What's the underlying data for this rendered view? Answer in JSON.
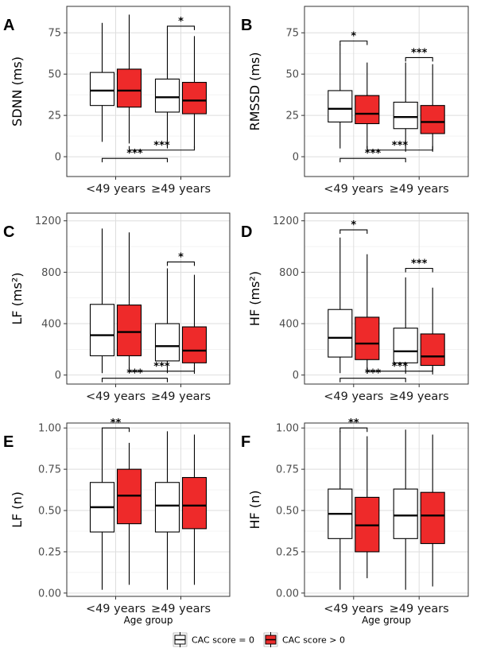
{
  "legend": {
    "items": [
      {
        "label": "CAC score = 0",
        "color": "#ffffff"
      },
      {
        "label": "CAC score > 0",
        "color": "#ee2a2a"
      }
    ]
  },
  "chart_data": [
    {
      "type": "box",
      "panel": "A",
      "ylabel": "SDNN (ms)",
      "xlabel": "",
      "ylim": [
        -12,
        91
      ],
      "yticks": [
        0,
        25,
        50,
        75
      ],
      "categories": [
        "<49 years",
        "≥49 years"
      ],
      "series": [
        {
          "name": "CAC score = 0",
          "color": "#ffffff",
          "boxes": [
            {
              "whislo": 9,
              "q1": 31,
              "med": 40,
              "q3": 51,
              "whishi": 81
            },
            {
              "whislo": 5,
              "q1": 27,
              "med": 36,
              "q3": 47,
              "whishi": 77
            }
          ]
        },
        {
          "name": "CAC score > 0",
          "color": "#ee2a2a",
          "boxes": [
            {
              "whislo": 8,
              "q1": 30,
              "med": 40,
              "q3": 53,
              "whishi": 86
            },
            {
              "whislo": 5,
              "q1": 26,
              "med": 34,
              "q3": 45,
              "whishi": 73
            }
          ]
        }
      ],
      "annotations": [
        {
          "text": "*",
          "from": [
            1,
            0
          ],
          "to": [
            1,
            1
          ],
          "y": 79,
          "dir": "down"
        },
        {
          "text": "***",
          "from": [
            0,
            1
          ],
          "to": [
            1,
            1
          ],
          "y": 4,
          "dir": "up"
        },
        {
          "text": "***",
          "from": [
            0,
            0
          ],
          "to": [
            1,
            0
          ],
          "y": -1,
          "dir": "down"
        }
      ]
    },
    {
      "type": "box",
      "panel": "B",
      "ylabel": "RMSSD (ms)",
      "xlabel": "",
      "ylim": [
        -12,
        91
      ],
      "yticks": [
        0,
        25,
        50,
        75
      ],
      "categories": [
        "<49 years",
        "≥49 years"
      ],
      "series": [
        {
          "name": "CAC score = 0",
          "color": "#ffffff",
          "boxes": [
            {
              "whislo": 5,
              "q1": 21,
              "med": 29,
              "q3": 40,
              "whishi": 68
            },
            {
              "whislo": 3,
              "q1": 17,
              "med": 24,
              "q3": 33,
              "whishi": 57
            }
          ]
        },
        {
          "name": "CAC score > 0",
          "color": "#ee2a2a",
          "boxes": [
            {
              "whislo": 5,
              "q1": 20,
              "med": 26,
              "q3": 37,
              "whishi": 57
            },
            {
              "whislo": 3,
              "q1": 14,
              "med": 21,
              "q3": 31,
              "whishi": 56
            }
          ]
        }
      ],
      "annotations": [
        {
          "text": "*",
          "from": [
            0,
            0
          ],
          "to": [
            0,
            1
          ],
          "y": 70,
          "dir": "down"
        },
        {
          "text": "***",
          "from": [
            1,
            0
          ],
          "to": [
            1,
            1
          ],
          "y": 60,
          "dir": "down"
        },
        {
          "text": "***",
          "from": [
            0,
            1
          ],
          "to": [
            1,
            1
          ],
          "y": 4,
          "dir": "up"
        },
        {
          "text": "***",
          "from": [
            0,
            0
          ],
          "to": [
            1,
            0
          ],
          "y": -1,
          "dir": "down"
        }
      ]
    },
    {
      "type": "box",
      "panel": "C",
      "ylabel": "LF (ms²)",
      "xlabel": "",
      "ylim": [
        -70,
        1260
      ],
      "yticks": [
        0,
        400,
        800,
        1200
      ],
      "categories": [
        "<49 years",
        "≥49 years"
      ],
      "series": [
        {
          "name": "CAC score = 0",
          "color": "#ffffff",
          "boxes": [
            {
              "whislo": 15,
              "q1": 150,
              "med": 310,
              "q3": 550,
              "whishi": 1140
            },
            {
              "whislo": 15,
              "q1": 110,
              "med": 225,
              "q3": 400,
              "whishi": 830
            }
          ]
        },
        {
          "name": "CAC score > 0",
          "color": "#ee2a2a",
          "boxes": [
            {
              "whislo": 15,
              "q1": 150,
              "med": 335,
              "q3": 545,
              "whishi": 1110
            },
            {
              "whislo": 10,
              "q1": 95,
              "med": 190,
              "q3": 375,
              "whishi": 780
            }
          ]
        }
      ],
      "annotations": [
        {
          "text": "*",
          "from": [
            1,
            0
          ],
          "to": [
            1,
            1
          ],
          "y": 880,
          "dir": "down"
        },
        {
          "text": "***",
          "from": [
            0,
            1
          ],
          "to": [
            1,
            1
          ],
          "y": 30,
          "dir": "up"
        },
        {
          "text": "***",
          "from": [
            0,
            0
          ],
          "to": [
            1,
            0
          ],
          "y": -25,
          "dir": "down"
        }
      ]
    },
    {
      "type": "box",
      "panel": "D",
      "ylabel": "HF (ms²)",
      "xlabel": "",
      "ylim": [
        -70,
        1260
      ],
      "yticks": [
        0,
        400,
        800,
        1200
      ],
      "categories": [
        "<49 years",
        "≥49 years"
      ],
      "series": [
        {
          "name": "CAC score = 0",
          "color": "#ffffff",
          "boxes": [
            {
              "whislo": 15,
              "q1": 140,
              "med": 290,
              "q3": 510,
              "whishi": 1070
            },
            {
              "whislo": 10,
              "q1": 95,
              "med": 185,
              "q3": 365,
              "whishi": 760
            }
          ]
        },
        {
          "name": "CAC score > 0",
          "color": "#ee2a2a",
          "boxes": [
            {
              "whislo": 10,
              "q1": 120,
              "med": 245,
              "q3": 450,
              "whishi": 940
            },
            {
              "whislo": 5,
              "q1": 75,
              "med": 145,
              "q3": 320,
              "whishi": 680
            }
          ]
        }
      ],
      "annotations": [
        {
          "text": "*",
          "from": [
            0,
            0
          ],
          "to": [
            0,
            1
          ],
          "y": 1130,
          "dir": "down"
        },
        {
          "text": "***",
          "from": [
            1,
            0
          ],
          "to": [
            1,
            1
          ],
          "y": 830,
          "dir": "down"
        },
        {
          "text": "***",
          "from": [
            0,
            1
          ],
          "to": [
            1,
            1
          ],
          "y": 30,
          "dir": "up"
        },
        {
          "text": "***",
          "from": [
            0,
            0
          ],
          "to": [
            1,
            0
          ],
          "y": -25,
          "dir": "down"
        }
      ]
    },
    {
      "type": "box",
      "panel": "E",
      "ylabel": "LF (n)",
      "xlabel": "Age group",
      "ylim": [
        -0.02,
        1.03
      ],
      "yticks": [
        0.0,
        0.25,
        0.5,
        0.75,
        1.0
      ],
      "categories": [
        "<49 years",
        "≥49 years"
      ],
      "series": [
        {
          "name": "CAC score = 0",
          "color": "#ffffff",
          "boxes": [
            {
              "whislo": 0.02,
              "q1": 0.37,
              "med": 0.52,
              "q3": 0.67,
              "whishi": 0.98
            },
            {
              "whislo": 0.02,
              "q1": 0.37,
              "med": 0.53,
              "q3": 0.67,
              "whishi": 0.98
            }
          ]
        },
        {
          "name": "CAC score > 0",
          "color": "#ee2a2a",
          "boxes": [
            {
              "whislo": 0.05,
              "q1": 0.42,
              "med": 0.59,
              "q3": 0.75,
              "whishi": 0.91
            },
            {
              "whislo": 0.05,
              "q1": 0.39,
              "med": 0.53,
              "q3": 0.7,
              "whishi": 0.96
            }
          ]
        }
      ],
      "annotations": [
        {
          "text": "**",
          "from": [
            0,
            0
          ],
          "to": [
            0,
            1
          ],
          "y": 1.0,
          "dir": "down"
        }
      ]
    },
    {
      "type": "box",
      "panel": "F",
      "ylabel": "HF (n)",
      "xlabel": "Age group",
      "ylim": [
        -0.02,
        1.03
      ],
      "yticks": [
        0.0,
        0.25,
        0.5,
        0.75,
        1.0
      ],
      "categories": [
        "<49 years",
        "≥49 years"
      ],
      "series": [
        {
          "name": "CAC score = 0",
          "color": "#ffffff",
          "boxes": [
            {
              "whislo": 0.02,
              "q1": 0.33,
              "med": 0.48,
              "q3": 0.63,
              "whishi": 0.98
            },
            {
              "whislo": 0.02,
              "q1": 0.33,
              "med": 0.47,
              "q3": 0.63,
              "whishi": 0.99
            }
          ]
        },
        {
          "name": "CAC score > 0",
          "color": "#ee2a2a",
          "boxes": [
            {
              "whislo": 0.09,
              "q1": 0.25,
              "med": 0.41,
              "q3": 0.58,
              "whishi": 0.95
            },
            {
              "whislo": 0.04,
              "q1": 0.3,
              "med": 0.47,
              "q3": 0.61,
              "whishi": 0.96
            }
          ]
        }
      ],
      "annotations": [
        {
          "text": "**",
          "from": [
            0,
            0
          ],
          "to": [
            0,
            1
          ],
          "y": 1.0,
          "dir": "down"
        }
      ]
    }
  ]
}
